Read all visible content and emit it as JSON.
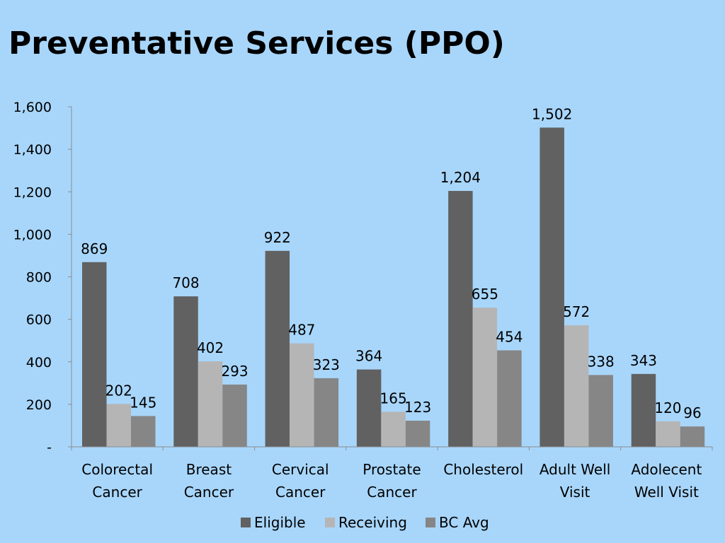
{
  "title": "Preventative Services (PPO)",
  "chart_data": {
    "type": "bar",
    "categories": [
      [
        "Colorectal",
        "Cancer"
      ],
      [
        "Breast",
        "Cancer"
      ],
      [
        "Cervical",
        "Cancer"
      ],
      [
        "Prostate",
        "Cancer"
      ],
      [
        "Cholesterol"
      ],
      [
        "Adult Well",
        "Visit"
      ],
      [
        "Adolecent",
        "Well Visit"
      ]
    ],
    "series": [
      {
        "name": "Eligible",
        "color": "#616161",
        "values": [
          869,
          708,
          922,
          364,
          1204,
          1502,
          343
        ]
      },
      {
        "name": "Receiving",
        "color": "#b5b5b5",
        "values": [
          202,
          402,
          487,
          165,
          655,
          572,
          120
        ]
      },
      {
        "name": "BC Avg",
        "color": "#868686",
        "values": [
          145,
          293,
          323,
          123,
          454,
          338,
          96
        ]
      }
    ],
    "ylim": [
      0,
      1600
    ],
    "yticks": [
      {
        "value": 0,
        "label": "-"
      },
      {
        "value": 200,
        "label": "200"
      },
      {
        "value": 400,
        "label": "400"
      },
      {
        "value": 600,
        "label": "600"
      },
      {
        "value": 800,
        "label": "800"
      },
      {
        "value": 1000,
        "label": "1,000"
      },
      {
        "value": 1200,
        "label": "1,200"
      },
      {
        "value": 1400,
        "label": "1,400"
      },
      {
        "value": 1600,
        "label": "1,600"
      }
    ],
    "value_labels": [
      [
        "869",
        "708",
        "922",
        "364",
        "1,204",
        "1,502",
        "343"
      ],
      [
        "202",
        "402",
        "487",
        "165",
        "655",
        "572",
        "120"
      ],
      [
        "145",
        "293",
        "323",
        "123",
        "454",
        "338",
        "96"
      ]
    ],
    "legend": "bottom",
    "grid": false
  }
}
